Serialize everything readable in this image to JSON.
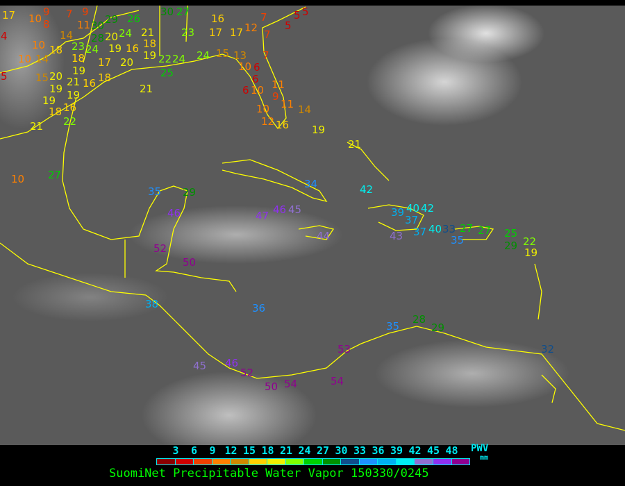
{
  "title": "SuomiNet Precipitable Water Vapor 150330/0245",
  "legend": {
    "unit_label": "PWV",
    "unit": "mm",
    "ticks": [
      "3",
      "6",
      "9",
      "12",
      "15",
      "18",
      "21",
      "24",
      "27",
      "30",
      "33",
      "36",
      "39",
      "42",
      "45",
      "48"
    ],
    "colors": [
      "#8b0000",
      "#d00000",
      "#f04000",
      "#ff8000",
      "#d08800",
      "#ffd000",
      "#f0f000",
      "#80ff00",
      "#00d000",
      "#009000",
      "#104e8b",
      "#1e90ff",
      "#00b0f0",
      "#00f0f0",
      "#9070d0",
      "#9030f0",
      "#900090"
    ]
  },
  "coastline_color": "#ffff00",
  "stations": [
    17,
    4,
    5,
    10,
    8,
    9,
    7,
    9,
    11,
    30,
    28,
    29,
    26,
    30,
    27,
    14,
    23,
    24,
    20,
    24,
    21,
    18,
    23,
    10,
    18,
    10,
    14,
    18,
    19,
    17,
    19,
    16,
    19,
    20,
    22,
    24,
    25,
    24,
    15,
    20,
    21,
    19,
    19,
    16,
    18,
    19,
    18,
    16,
    21,
    22,
    21,
    10,
    27,
    16,
    17,
    17,
    12,
    15,
    13,
    7,
    7,
    7,
    5,
    5,
    5,
    10,
    6,
    6,
    10,
    6,
    11,
    9,
    10,
    11,
    12,
    16,
    14,
    19,
    21,
    35,
    29,
    46,
    47,
    46,
    45,
    52,
    50,
    38,
    36,
    34,
    42,
    44,
    39,
    40,
    42,
    37,
    43,
    37,
    40,
    33,
    35,
    27,
    27,
    25,
    29,
    22,
    19,
    45,
    46,
    52,
    50,
    54,
    54,
    53,
    35,
    28,
    29,
    32
  ]
}
